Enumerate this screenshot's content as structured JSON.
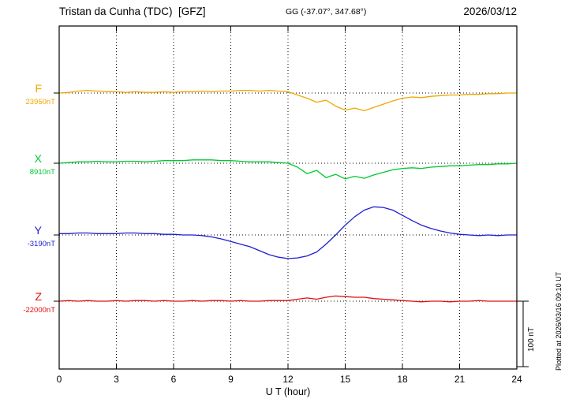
{
  "header": {
    "title": "Tristan da Cunha (TDC)  [GFZ]",
    "coords": "GG (-37.07°, 347.68°)",
    "date": "2026/03/12"
  },
  "side": {
    "scale_label": "100 nT",
    "plotted_at": "Plotted at 2026/03/16 09:10 UT"
  },
  "chart_data": {
    "type": "line",
    "title": "Tristan da Cunha (TDC) [GFZ] magnetogram 2026/03/12",
    "xlabel": "U T (hour)",
    "x_range": [
      0,
      24
    ],
    "x_step": 0.5,
    "xticks": [
      0,
      3,
      6,
      9,
      12,
      15,
      18,
      21,
      24
    ],
    "grid": "dotted-vertical-at-xticks",
    "scale_bar": {
      "label": "100 nT",
      "nT": 100
    },
    "units": "nT offset from baseline",
    "series": [
      {
        "name": "F",
        "baseline_label": "23950nT",
        "baseline_nT": 23950,
        "color": "#f0a800",
        "values": [
          0,
          1,
          3,
          4,
          3,
          2,
          2,
          1,
          2,
          1,
          1,
          2,
          1,
          2,
          2,
          3,
          2,
          3,
          3,
          4,
          4,
          3,
          4,
          3,
          2,
          -3,
          -8,
          -14,
          -11,
          -20,
          -26,
          -23,
          -27,
          -22,
          -17,
          -12,
          -8,
          -6,
          -7,
          -5,
          -4,
          -3,
          -3,
          -2,
          -2,
          -1,
          -1,
          0,
          0
        ]
      },
      {
        "name": "X",
        "baseline_label": "8910nT",
        "baseline_nT": 8910,
        "color": "#00c832",
        "values": [
          0,
          1,
          2,
          2,
          3,
          2,
          2,
          3,
          3,
          2,
          3,
          4,
          4,
          4,
          5,
          5,
          5,
          4,
          4,
          3,
          2,
          2,
          2,
          1,
          0,
          -6,
          -16,
          -11,
          -22,
          -17,
          -24,
          -20,
          -23,
          -18,
          -14,
          -10,
          -8,
          -7,
          -8,
          -6,
          -5,
          -4,
          -4,
          -3,
          -2,
          -2,
          -1,
          -1,
          0
        ]
      },
      {
        "name": "Y",
        "baseline_label": "-3190nT",
        "baseline_nT": -3190,
        "color": "#1f1fd1",
        "values": [
          2,
          2,
          3,
          3,
          2,
          2,
          2,
          3,
          3,
          2,
          2,
          1,
          1,
          0,
          0,
          -1,
          -3,
          -6,
          -10,
          -14,
          -18,
          -24,
          -30,
          -34,
          -36,
          -35,
          -32,
          -26,
          -14,
          0,
          15,
          28,
          38,
          43,
          42,
          38,
          30,
          22,
          15,
          10,
          6,
          3,
          1,
          0,
          -1,
          0,
          -1,
          0,
          0
        ]
      },
      {
        "name": "Z",
        "baseline_label": "-22000nT",
        "baseline_nT": -22000,
        "color": "#e01010",
        "values": [
          0,
          1,
          0,
          1,
          0,
          0,
          1,
          0,
          1,
          1,
          0,
          1,
          0,
          0,
          1,
          0,
          1,
          1,
          0,
          1,
          0,
          0,
          1,
          1,
          1,
          3,
          5,
          3,
          6,
          8,
          7,
          6,
          6,
          4,
          3,
          2,
          1,
          0,
          -1,
          0,
          0,
          -1,
          0,
          0,
          1,
          0,
          0,
          0,
          0
        ]
      }
    ]
  }
}
